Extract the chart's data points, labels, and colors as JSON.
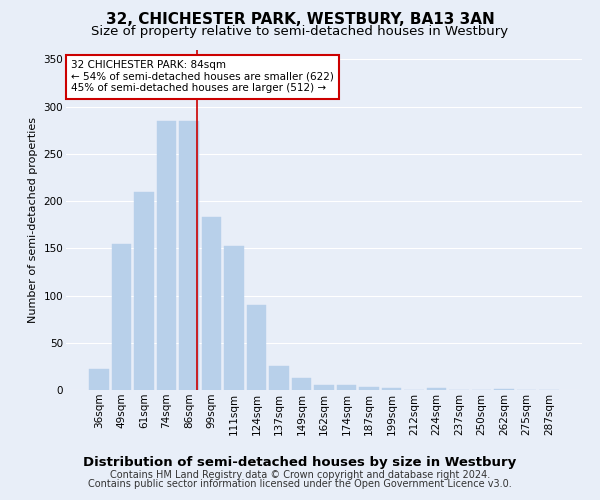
{
  "title1": "32, CHICHESTER PARK, WESTBURY, BA13 3AN",
  "title2": "Size of property relative to semi-detached houses in Westbury",
  "xlabel": "Distribution of semi-detached houses by size in Westbury",
  "ylabel": "Number of semi-detached properties",
  "footer1": "Contains HM Land Registry data © Crown copyright and database right 2024.",
  "footer2": "Contains public sector information licensed under the Open Government Licence v3.0.",
  "bar_labels": [
    "36sqm",
    "49sqm",
    "61sqm",
    "74sqm",
    "86sqm",
    "99sqm",
    "111sqm",
    "124sqm",
    "137sqm",
    "149sqm",
    "162sqm",
    "174sqm",
    "187sqm",
    "199sqm",
    "212sqm",
    "224sqm",
    "237sqm",
    "250sqm",
    "262sqm",
    "275sqm",
    "287sqm"
  ],
  "bar_values": [
    22,
    155,
    210,
    285,
    285,
    183,
    152,
    90,
    25,
    13,
    5,
    5,
    3,
    2,
    0,
    2,
    0,
    0,
    1,
    0,
    0
  ],
  "bar_color": "#b8d0ea",
  "bar_edgecolor": "#b8d0ea",
  "property_index": 4,
  "property_line_color": "#cc0000",
  "annotation_text": "32 CHICHESTER PARK: 84sqm\n← 54% of semi-detached houses are smaller (622)\n45% of semi-detached houses are larger (512) →",
  "annotation_box_edgecolor": "#cc0000",
  "annotation_box_facecolor": "#ffffff",
  "ylim": [
    0,
    360
  ],
  "yticks": [
    0,
    50,
    100,
    150,
    200,
    250,
    300,
    350
  ],
  "background_color": "#e8eef8",
  "axes_background": "#e8eef8",
  "grid_color": "#ffffff",
  "title1_fontsize": 11,
  "title2_fontsize": 9.5,
  "xlabel_fontsize": 9.5,
  "ylabel_fontsize": 8,
  "tick_fontsize": 7.5,
  "footer_fontsize": 7,
  "annotation_fontsize": 7.5
}
